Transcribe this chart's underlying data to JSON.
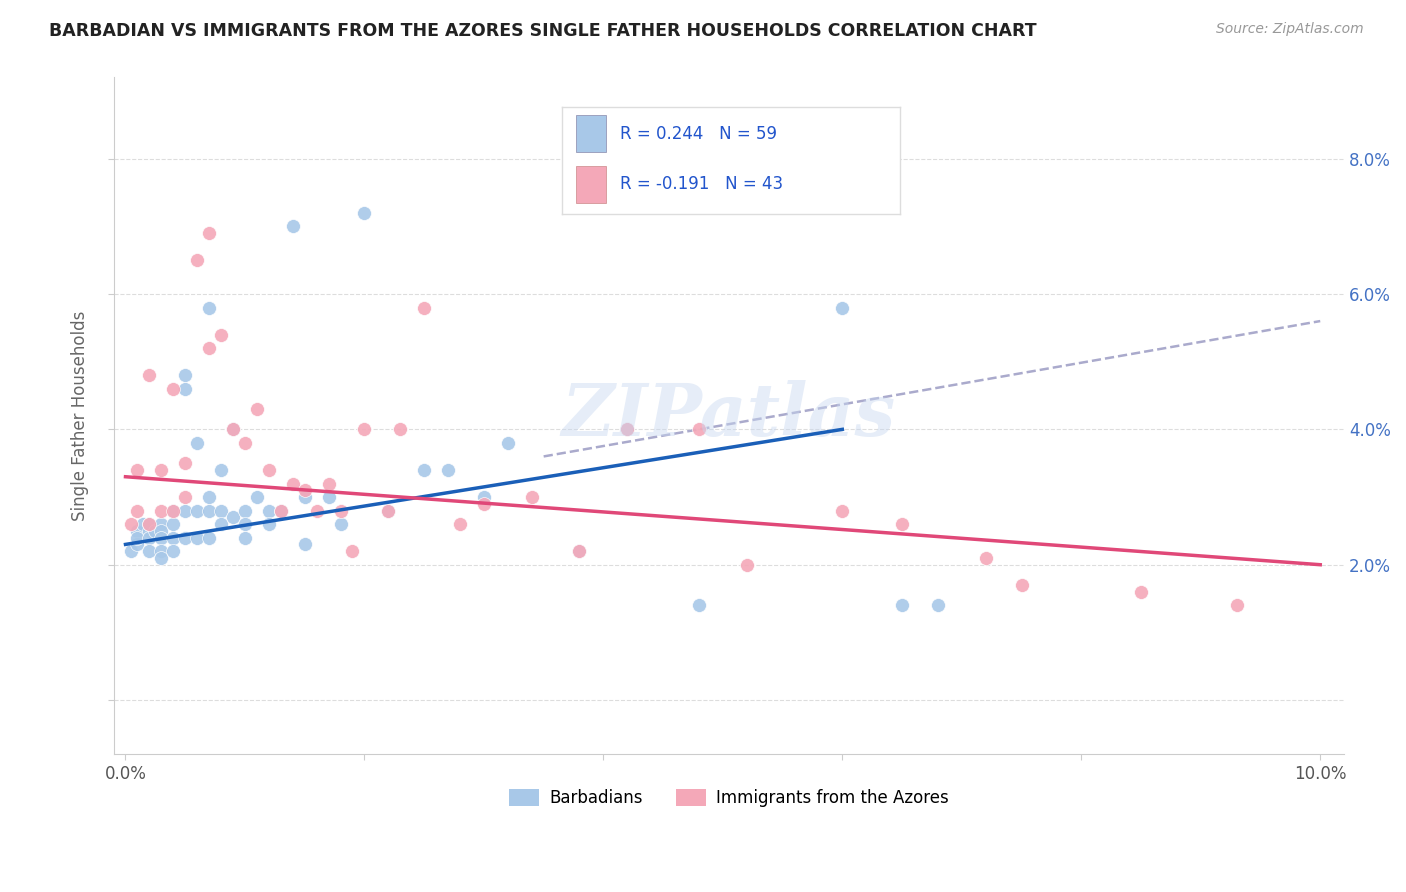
{
  "title": "BARBADIAN VS IMMIGRANTS FROM THE AZORES SINGLE FATHER HOUSEHOLDS CORRELATION CHART",
  "source": "Source: ZipAtlas.com",
  "ylabel": "Single Father Households",
  "legend_label1": "Barbadians",
  "legend_label2": "Immigrants from the Azores",
  "color_blue": "#a8c8e8",
  "color_pink": "#f4a8b8",
  "line_blue": "#1a5fb8",
  "line_pink": "#e04878",
  "line_dashed_color": "#aaaacc",
  "background": "#ffffff",
  "xlim": [
    -0.001,
    0.102
  ],
  "ylim": [
    -0.008,
    0.092
  ],
  "blue_x": [
    0.0005,
    0.001,
    0.001,
    0.001,
    0.0015,
    0.002,
    0.002,
    0.002,
    0.002,
    0.0025,
    0.003,
    0.003,
    0.003,
    0.003,
    0.003,
    0.004,
    0.004,
    0.004,
    0.004,
    0.005,
    0.005,
    0.005,
    0.005,
    0.006,
    0.006,
    0.006,
    0.007,
    0.007,
    0.007,
    0.007,
    0.008,
    0.008,
    0.008,
    0.009,
    0.009,
    0.01,
    0.01,
    0.01,
    0.011,
    0.012,
    0.012,
    0.013,
    0.014,
    0.015,
    0.015,
    0.017,
    0.018,
    0.02,
    0.022,
    0.025,
    0.027,
    0.03,
    0.032,
    0.038,
    0.042,
    0.048,
    0.06,
    0.065,
    0.068
  ],
  "blue_y": [
    0.022,
    0.025,
    0.023,
    0.024,
    0.026,
    0.025,
    0.024,
    0.026,
    0.022,
    0.025,
    0.026,
    0.025,
    0.024,
    0.022,
    0.021,
    0.028,
    0.026,
    0.024,
    0.022,
    0.048,
    0.046,
    0.028,
    0.024,
    0.038,
    0.028,
    0.024,
    0.058,
    0.03,
    0.028,
    0.024,
    0.034,
    0.028,
    0.026,
    0.04,
    0.027,
    0.028,
    0.026,
    0.024,
    0.03,
    0.028,
    0.026,
    0.028,
    0.07,
    0.03,
    0.023,
    0.03,
    0.026,
    0.072,
    0.028,
    0.034,
    0.034,
    0.03,
    0.038,
    0.022,
    0.04,
    0.014,
    0.058,
    0.014,
    0.014
  ],
  "pink_x": [
    0.0005,
    0.001,
    0.001,
    0.002,
    0.002,
    0.003,
    0.003,
    0.004,
    0.004,
    0.005,
    0.005,
    0.006,
    0.007,
    0.007,
    0.008,
    0.009,
    0.01,
    0.011,
    0.012,
    0.013,
    0.014,
    0.015,
    0.016,
    0.017,
    0.018,
    0.019,
    0.02,
    0.022,
    0.023,
    0.025,
    0.028,
    0.03,
    0.034,
    0.038,
    0.042,
    0.048,
    0.052,
    0.06,
    0.065,
    0.072,
    0.075,
    0.085,
    0.093
  ],
  "pink_y": [
    0.026,
    0.034,
    0.028,
    0.048,
    0.026,
    0.034,
    0.028,
    0.046,
    0.028,
    0.035,
    0.03,
    0.065,
    0.052,
    0.069,
    0.054,
    0.04,
    0.038,
    0.043,
    0.034,
    0.028,
    0.032,
    0.031,
    0.028,
    0.032,
    0.028,
    0.022,
    0.04,
    0.028,
    0.04,
    0.058,
    0.026,
    0.029,
    0.03,
    0.022,
    0.04,
    0.04,
    0.02,
    0.028,
    0.026,
    0.021,
    0.017,
    0.016,
    0.014
  ],
  "blue_line_x0": 0.0,
  "blue_line_y0": 0.023,
  "blue_line_x1": 0.06,
  "blue_line_y1": 0.04,
  "pink_line_x0": 0.0,
  "pink_line_y0": 0.033,
  "pink_line_x1": 0.1,
  "pink_line_y1": 0.02,
  "dash_line_x0": 0.035,
  "dash_line_y0": 0.036,
  "dash_line_x1": 0.1,
  "dash_line_y1": 0.056
}
